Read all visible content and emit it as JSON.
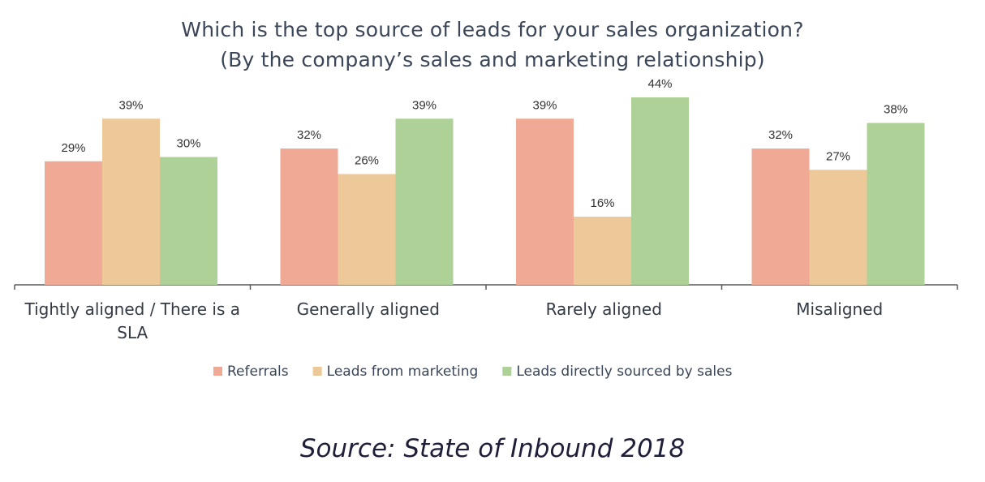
{
  "title_line1": "Which is the top source of leads for your sales organization?",
  "title_line2": "(By the company’s sales and marketing relationship)",
  "source": "Source: State of Inbound 2018",
  "chart_data": {
    "type": "bar",
    "categories": [
      [
        "Tightly aligned / There is a",
        "SLA"
      ],
      [
        "Generally aligned"
      ],
      [
        "Rarely aligned"
      ],
      [
        "Misaligned"
      ]
    ],
    "series": [
      {
        "name": "Referrals",
        "color": "#efa994",
        "values": [
          29,
          32,
          39,
          32
        ]
      },
      {
        "name": "Leads from marketing",
        "color": "#edc898",
        "values": [
          39,
          26,
          16,
          27
        ]
      },
      {
        "name": "Leads directly sourced by sales",
        "color": "#add196",
        "values": [
          30,
          39,
          44,
          38
        ]
      }
    ],
    "value_suffix": "%",
    "ylim": [
      0,
      48
    ],
    "grid": false,
    "legend_position": "bottom"
  }
}
